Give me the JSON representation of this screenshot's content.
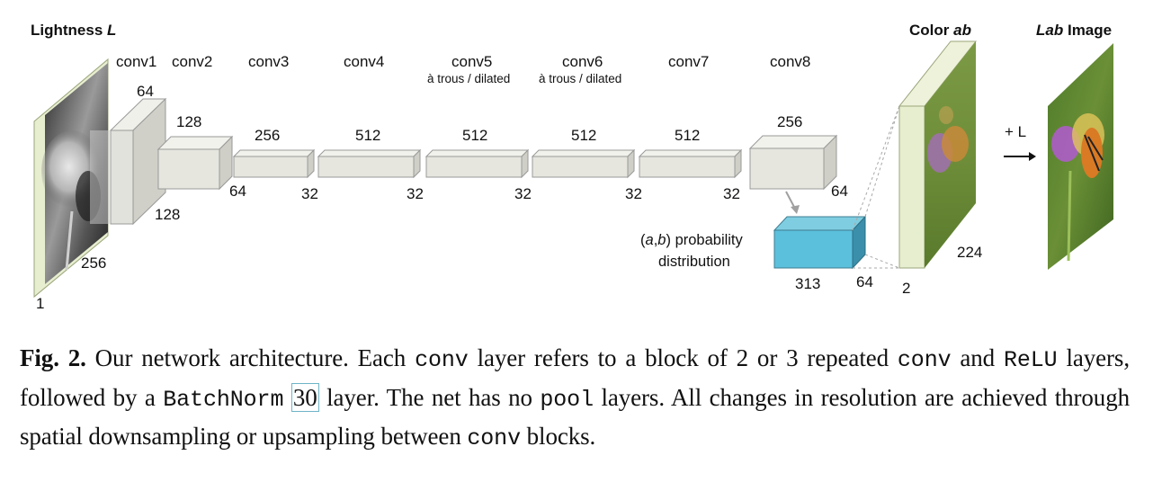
{
  "figure": {
    "input": {
      "title": "Lightness",
      "title_var": "L",
      "dim_width": "256",
      "dim_channels": "1"
    },
    "layers": [
      {
        "id": "conv1",
        "name": "conv1",
        "size_top": "64",
        "size_side": "128"
      },
      {
        "id": "conv2",
        "name": "conv2",
        "size_top": "128",
        "size_side": "64"
      },
      {
        "id": "conv3",
        "name": "conv3",
        "size_top": "256",
        "size_side": "32"
      },
      {
        "id": "conv4",
        "name": "conv4",
        "size_top": "512",
        "size_side": "32"
      },
      {
        "id": "conv5",
        "name": "conv5",
        "sub": "à trous / dilated",
        "size_top": "512",
        "size_side": "32"
      },
      {
        "id": "conv6",
        "name": "conv6",
        "sub": "à trous / dilated",
        "size_top": "512",
        "size_side": "32"
      },
      {
        "id": "conv7",
        "name": "conv7",
        "size_top": "512",
        "size_side": "32"
      },
      {
        "id": "conv8",
        "name": "conv8",
        "size_top": "256",
        "size_side": "64"
      }
    ],
    "prob": {
      "line1_var": "a",
      "line1_var2": "b",
      "line1_rest": "probability",
      "line2": "distribution",
      "dim_bins": "313",
      "dim_side": "64"
    },
    "output_ab": {
      "title": "Color",
      "title_var": "ab",
      "dim_width": "224",
      "dim_channels": "2"
    },
    "plus_l": "+ L",
    "output_lab": {
      "title_var": "Lab",
      "title": "Image"
    }
  },
  "caption": {
    "fig_label": "Fig. 2.",
    "t1": " Our network architecture. Each ",
    "c1": "conv",
    "t2": " layer refers to a block of 2 or 3 repeated ",
    "c2": "conv",
    "t3": " and ",
    "c3": "ReLU",
    "t4": " layers, followed by a ",
    "c4": "BatchNorm",
    "t5": " ",
    "cite": "30",
    "t6": " layer. The net has no ",
    "c5": "pool",
    "t7": " layers. All changes in resolution are achieved through spatial downsampling or upsampling between ",
    "c6": "conv",
    "t8": " blocks."
  }
}
